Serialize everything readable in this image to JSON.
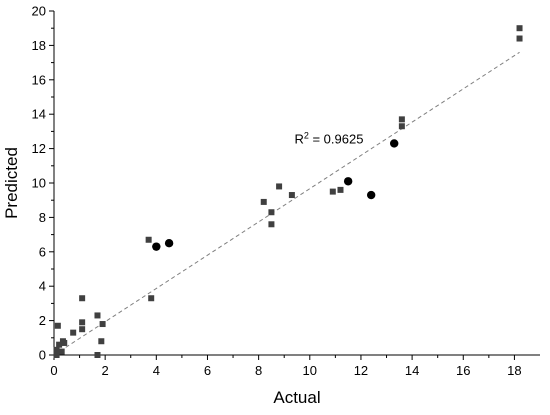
{
  "chart_data": {
    "type": "scatter",
    "xlabel": "Actual",
    "ylabel": "Predicted",
    "xlim": [
      0,
      19
    ],
    "ylim": [
      0,
      20
    ],
    "x_ticks": [
      0,
      2,
      4,
      6,
      8,
      10,
      12,
      14,
      16,
      18
    ],
    "y_ticks": [
      0,
      2,
      4,
      6,
      8,
      10,
      12,
      14,
      16,
      18,
      20
    ],
    "grid": false,
    "series": [
      {
        "marker": "square",
        "color": "#404040",
        "points": [
          [
            0.1,
            0.0
          ],
          [
            0.1,
            0.3
          ],
          [
            0.15,
            1.7
          ],
          [
            0.2,
            0.6
          ],
          [
            0.3,
            0.2
          ],
          [
            0.35,
            0.8
          ],
          [
            0.4,
            0.7
          ],
          [
            0.75,
            1.3
          ],
          [
            1.1,
            3.3
          ],
          [
            1.1,
            1.9
          ],
          [
            1.1,
            1.5
          ],
          [
            1.7,
            2.3
          ],
          [
            1.7,
            0.0
          ],
          [
            1.85,
            0.8
          ],
          [
            1.9,
            1.8
          ],
          [
            3.7,
            6.7
          ],
          [
            3.8,
            3.3
          ],
          [
            8.2,
            8.9
          ],
          [
            8.5,
            8.3
          ],
          [
            8.5,
            7.6
          ],
          [
            8.8,
            9.8
          ],
          [
            9.3,
            9.3
          ],
          [
            10.9,
            9.5
          ],
          [
            11.2,
            9.6
          ],
          [
            13.6,
            13.3
          ],
          [
            13.6,
            13.7
          ],
          [
            18.2,
            18.4
          ],
          [
            18.2,
            19.0
          ]
        ]
      },
      {
        "marker": "circle",
        "color": "#000000",
        "points": [
          [
            4.0,
            6.3
          ],
          [
            4.5,
            6.5
          ],
          [
            11.5,
            10.1
          ],
          [
            12.4,
            9.3
          ],
          [
            13.3,
            12.3
          ]
        ]
      }
    ],
    "fit_line": {
      "style": "dashed",
      "color": "#808080",
      "x": [
        0,
        18.2
      ],
      "y": [
        0.0,
        17.6
      ]
    },
    "annotation": {
      "text": "R",
      "superscript": "2",
      "suffix": " = 0.9625",
      "x": 9.4,
      "y": 12.3
    }
  },
  "colors": {
    "axis": "#000000",
    "fit_line": "#808080",
    "square_marker": "#404040",
    "circle_marker": "#000000"
  }
}
